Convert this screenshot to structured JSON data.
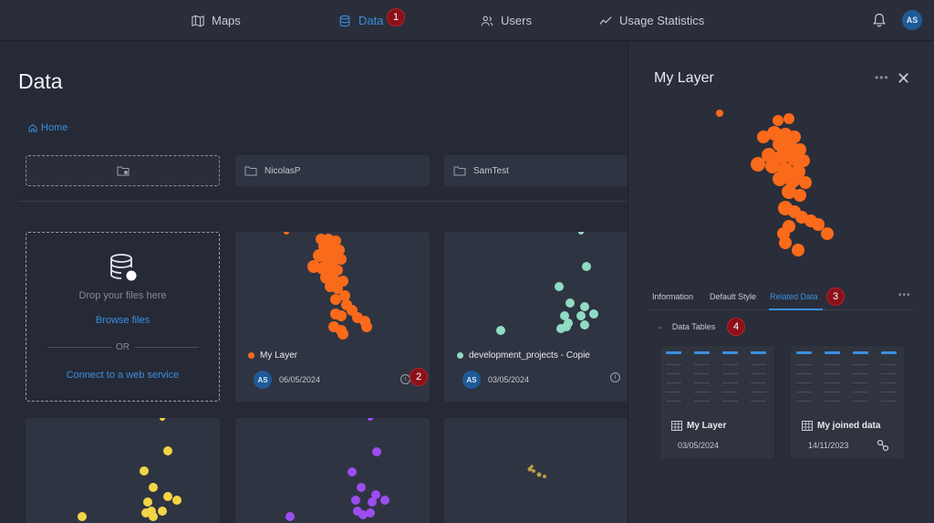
{
  "nav": {
    "items": [
      {
        "label": "Maps",
        "icon": "map-icon"
      },
      {
        "label": "Data",
        "icon": "database-icon",
        "active": true
      },
      {
        "label": "Users",
        "icon": "users-icon"
      },
      {
        "label": "Usage Statistics",
        "icon": "chart-line-icon"
      }
    ],
    "avatar": "AS"
  },
  "badges": [
    "1",
    "2",
    "3",
    "4"
  ],
  "page": {
    "title": "Data",
    "breadcrumb": "Home"
  },
  "folders": [
    "NicolasP",
    "SamTest"
  ],
  "upload": {
    "drop_text": "Drop your files here",
    "browse": "Browse files",
    "or": "OR",
    "connect": "Connect to a web service"
  },
  "cards": [
    {
      "name": "My Layer",
      "date": "06/05/2024",
      "avatar": "AS",
      "color": "#f96a1a"
    },
    {
      "name": "development_projects - Copie",
      "date": "03/05/2024",
      "avatar": "AS",
      "color": "#8fdcc3"
    }
  ],
  "panel": {
    "title": "My Layer",
    "tabs": [
      "Information",
      "Default Style",
      "Related Data"
    ],
    "active_tab": "Related Data",
    "section": "Data Tables",
    "tables": [
      {
        "name": "My Layer",
        "date": "03/05/2024"
      },
      {
        "name": "My joined data",
        "date": "14/11/2023"
      }
    ]
  },
  "colors": {
    "accent": "#3b8fe0",
    "orange": "#f96a1a",
    "teal": "#8fdcc3",
    "yellow": "#f2d447",
    "purple": "#9b4df0"
  }
}
